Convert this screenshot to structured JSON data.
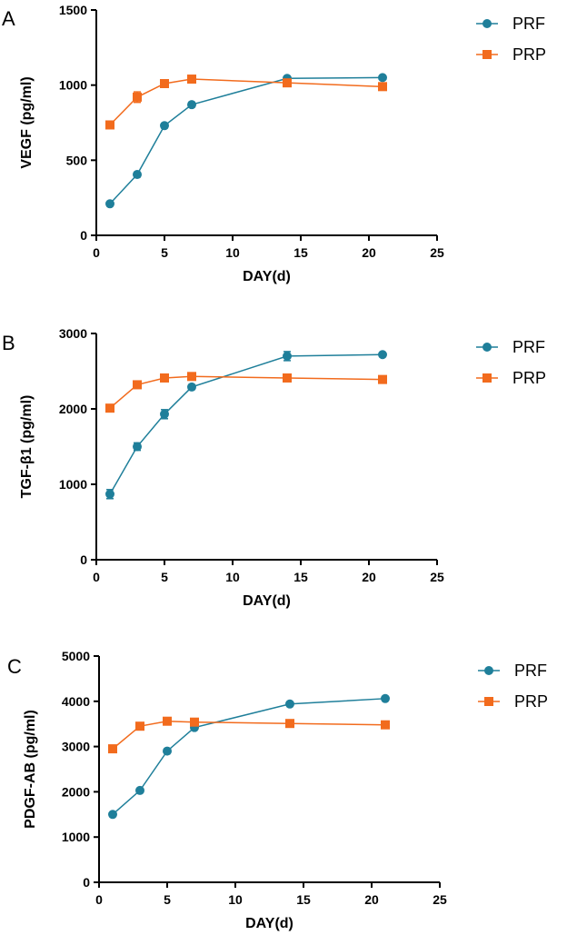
{
  "colors": {
    "PRF": "#1f7f9a",
    "PRP": "#f26b1d"
  },
  "chart_data": [
    {
      "type": "line",
      "panel": "A",
      "xlabel": "DAY(d)",
      "ylabel": "VEGF (pg/ml)",
      "xlim": [
        0,
        25
      ],
      "ylim": [
        0,
        1500
      ],
      "xticks": [
        0,
        5,
        10,
        15,
        20,
        25
      ],
      "yticks": [
        0,
        500,
        1000,
        1500
      ],
      "x": [
        1,
        3,
        5,
        7,
        14,
        21
      ],
      "legend_position": "top-right",
      "series": [
        {
          "name": "PRF",
          "marker": "circle",
          "values": [
            210,
            405,
            730,
            870,
            1045,
            1050
          ],
          "errors": [
            0,
            15,
            15,
            15,
            15,
            10
          ]
        },
        {
          "name": "PRP",
          "marker": "square",
          "values": [
            735,
            920,
            1010,
            1040,
            1015,
            990
          ],
          "errors": [
            10,
            35,
            15,
            15,
            15,
            10
          ]
        }
      ]
    },
    {
      "type": "line",
      "panel": "B",
      "xlabel": "DAY(d)",
      "ylabel": "TGF-β1 (pg/ml)",
      "xlim": [
        0,
        25
      ],
      "ylim": [
        0,
        3000
      ],
      "xticks": [
        0,
        5,
        10,
        15,
        20,
        25
      ],
      "yticks": [
        0,
        1000,
        2000,
        3000
      ],
      "x": [
        1,
        3,
        5,
        7,
        14,
        21
      ],
      "legend_position": "top-right",
      "series": [
        {
          "name": "PRF",
          "marker": "circle",
          "values": [
            870,
            1500,
            1930,
            2290,
            2700,
            2720
          ],
          "errors": [
            60,
            50,
            60,
            30,
            60,
            20
          ]
        },
        {
          "name": "PRP",
          "marker": "square",
          "values": [
            2010,
            2320,
            2410,
            2430,
            2410,
            2390
          ],
          "errors": [
            30,
            30,
            30,
            20,
            20,
            20
          ]
        }
      ]
    },
    {
      "type": "line",
      "panel": "C",
      "xlabel": "DAY(d)",
      "ylabel": "PDGF-AB (pg/ml)",
      "xlim": [
        0,
        25
      ],
      "ylim": [
        0,
        5000
      ],
      "xticks": [
        0,
        5,
        10,
        15,
        20,
        25
      ],
      "yticks": [
        0,
        1000,
        2000,
        3000,
        4000,
        5000
      ],
      "x": [
        1,
        3,
        5,
        7,
        14,
        21
      ],
      "legend_position": "top-right",
      "series": [
        {
          "name": "PRF",
          "marker": "circle",
          "values": [
            1500,
            2030,
            2900,
            3420,
            3940,
            4060
          ],
          "errors": [
            0,
            0,
            0,
            0,
            0,
            0
          ]
        },
        {
          "name": "PRP",
          "marker": "square",
          "values": [
            2950,
            3450,
            3560,
            3540,
            3510,
            3480
          ],
          "errors": [
            0,
            0,
            0,
            0,
            0,
            0
          ]
        }
      ]
    }
  ]
}
